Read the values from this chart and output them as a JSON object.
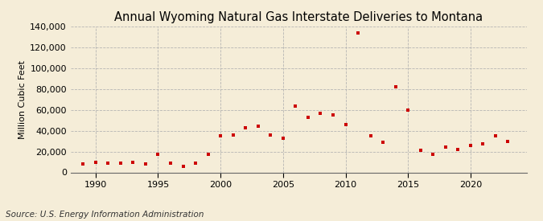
{
  "title": "Annual Wyoming Natural Gas Interstate Deliveries to Montana",
  "ylabel": "Million Cubic Feet",
  "source": "Source: U.S. Energy Information Administration",
  "background_color": "#f5edd8",
  "plot_background_color": "#f5edd8",
  "marker_color": "#cc0000",
  "grid_color": "#b0b0b0",
  "years": [
    1989,
    1990,
    1991,
    1992,
    1993,
    1994,
    1995,
    1996,
    1997,
    1998,
    1999,
    2000,
    2001,
    2002,
    2003,
    2004,
    2005,
    2006,
    2007,
    2008,
    2009,
    2010,
    2011,
    2012,
    2013,
    2014,
    2015,
    2016,
    2017,
    2018,
    2019,
    2020,
    2021,
    2022,
    2023
  ],
  "values": [
    8000,
    9500,
    9000,
    9000,
    10000,
    8000,
    17000,
    9000,
    6000,
    8500,
    17000,
    35000,
    36000,
    43000,
    44000,
    36000,
    33000,
    64000,
    53000,
    57000,
    55000,
    46000,
    134000,
    35000,
    29000,
    82000,
    60000,
    21000,
    17000,
    24000,
    22000,
    26000,
    27000,
    35000,
    30000
  ],
  "ylim": [
    0,
    140000
  ],
  "yticks": [
    0,
    20000,
    40000,
    60000,
    80000,
    100000,
    120000,
    140000
  ],
  "xlim": [
    1988.0,
    2024.5
  ],
  "xticks": [
    1990,
    1995,
    2000,
    2005,
    2010,
    2015,
    2020
  ],
  "title_fontsize": 10.5,
  "label_fontsize": 8,
  "tick_fontsize": 8,
  "source_fontsize": 7.5
}
